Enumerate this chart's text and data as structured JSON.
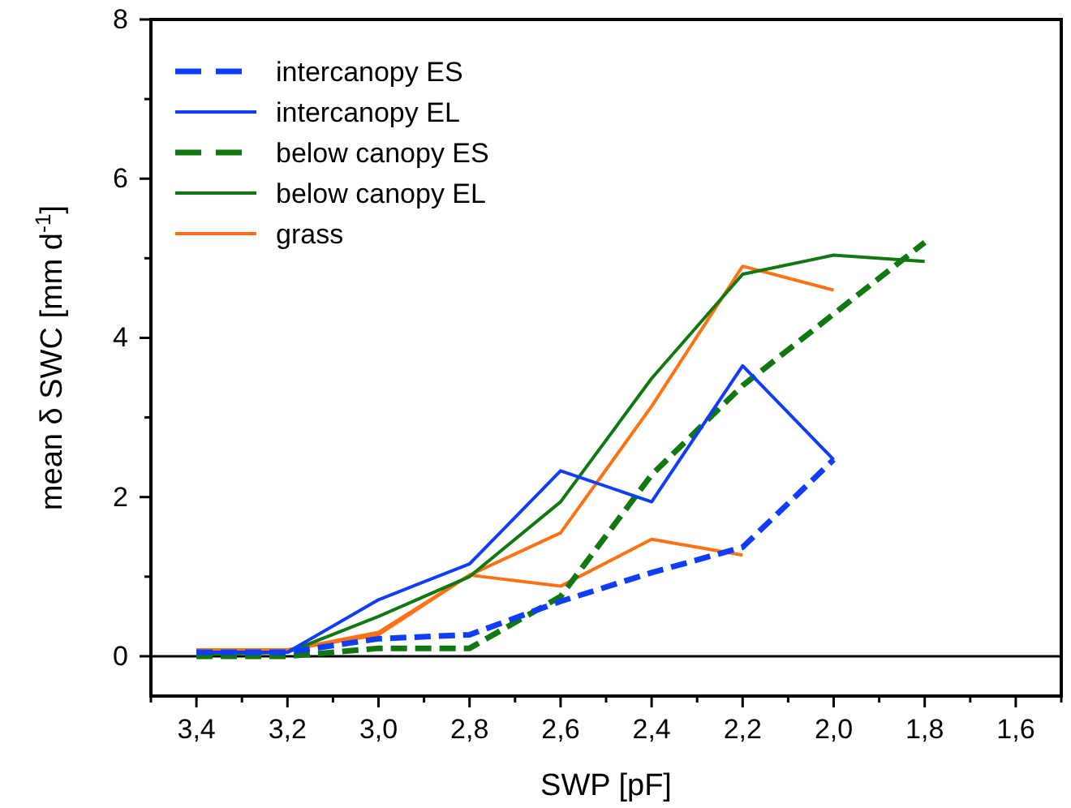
{
  "chart_data": {
    "type": "line",
    "xlabel": "SWP [pF]",
    "ylabel": "mean δ SWC [mm d$^{-1}$]",
    "xlim": [
      3.5,
      1.5
    ],
    "ylim": [
      -0.5,
      8
    ],
    "xticks": [
      {
        "value": 3.5,
        "label": null
      },
      {
        "value": 3.4,
        "label": "3,4"
      },
      {
        "value": 3.3,
        "label": null
      },
      {
        "value": 3.2,
        "label": "3,2"
      },
      {
        "value": 3.1,
        "label": null
      },
      {
        "value": 3.0,
        "label": "3,0"
      },
      {
        "value": 2.9,
        "label": null
      },
      {
        "value": 2.8,
        "label": "2,8"
      },
      {
        "value": 2.7,
        "label": null
      },
      {
        "value": 2.6,
        "label": "2,6"
      },
      {
        "value": 2.5,
        "label": null
      },
      {
        "value": 2.4,
        "label": "2,4"
      },
      {
        "value": 2.3,
        "label": null
      },
      {
        "value": 2.2,
        "label": "2,2"
      },
      {
        "value": 2.1,
        "label": null
      },
      {
        "value": 2.0,
        "label": "2,0"
      },
      {
        "value": 1.9,
        "label": null
      },
      {
        "value": 1.8,
        "label": "1,8"
      },
      {
        "value": 1.7,
        "label": null
      },
      {
        "value": 1.6,
        "label": "1,6"
      },
      {
        "value": 1.5,
        "label": null
      }
    ],
    "yticks": [
      0,
      {
        "value": 1,
        "label": null
      },
      2,
      {
        "value": 3,
        "label": null
      },
      4,
      {
        "value": 5,
        "label": null
      },
      6,
      {
        "value": 7,
        "label": null
      },
      8
    ],
    "grid": false,
    "legend": "top left",
    "marker": "none",
    "ref_lines": [
      {
        "axis": "y",
        "value": 0,
        "label": null,
        "color": "#000000",
        "line_style": "solid"
      }
    ],
    "series": [
      {
        "name": "intercanopy ES",
        "color": "#0f3dfa",
        "line_style": "dashed",
        "x": [
          3.4,
          3.2,
          3.0,
          2.8,
          2.6,
          2.4,
          2.2,
          2.0
        ],
        "values": [
          0.05,
          0.05,
          0.22,
          0.27,
          0.69,
          1.05,
          1.37,
          2.47
        ]
      },
      {
        "name": "intercanopy EL",
        "color": "#0f3dfa",
        "line_style": "solid",
        "x": [
          3.4,
          3.2,
          3.0,
          2.8,
          2.6,
          2.4,
          2.2,
          2.0
        ],
        "values": [
          0.05,
          0.05,
          0.71,
          1.16,
          2.33,
          1.94,
          3.65,
          2.47
        ]
      },
      {
        "name": "below canopy ES",
        "color": "#117711",
        "line_style": "dashed",
        "x": [
          3.4,
          3.2,
          3.0,
          2.8,
          2.6,
          2.4,
          2.2,
          2.0,
          1.8
        ],
        "values": [
          0.0,
          0.0,
          0.1,
          0.1,
          0.75,
          2.28,
          3.4,
          4.3,
          5.2
        ]
      },
      {
        "name": "below canopy EL",
        "color": "#117711",
        "line_style": "solid",
        "x": [
          3.4,
          3.2,
          3.0,
          2.8,
          2.6,
          2.4,
          2.2,
          2.0,
          1.8
        ],
        "values": [
          0.02,
          0.05,
          0.5,
          1.0,
          1.94,
          3.49,
          4.8,
          5.04,
          4.96
        ]
      },
      {
        "name": "grass",
        "color": "#ff7214",
        "line_style": "solid",
        "x": [
          3.4,
          3.2,
          3.0,
          2.8,
          2.6,
          2.4,
          2.2,
          2.0
        ],
        "values": [
          0.08,
          0.08,
          0.27,
          1.02,
          1.55,
          3.14,
          4.9,
          4.6
        ]
      },
      {
        "color": "#ff7214",
        "line_style": "solid",
        "x": [
          3.4,
          3.2,
          3.0,
          2.8,
          2.6,
          2.4,
          2.2
        ],
        "values": [
          0.08,
          0.08,
          0.3,
          1.02,
          0.88,
          1.47,
          1.27
        ]
      }
    ]
  }
}
